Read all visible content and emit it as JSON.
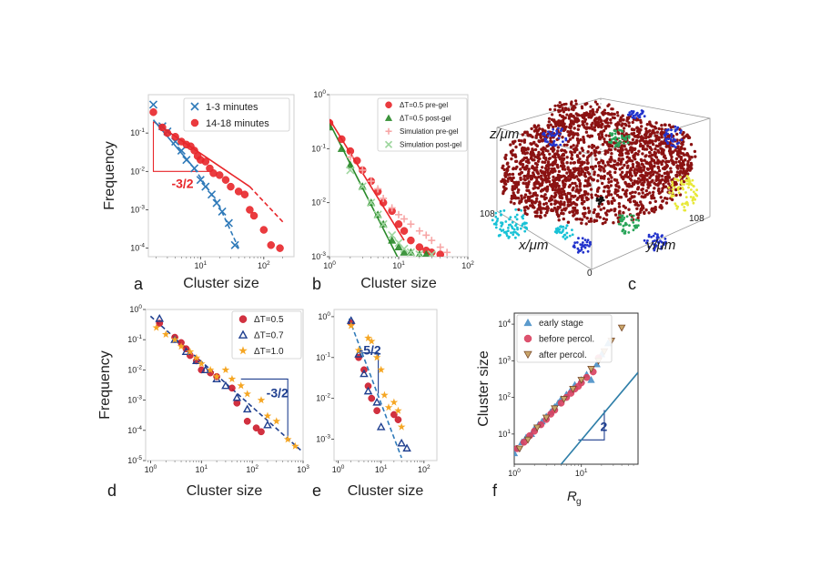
{
  "figure": {
    "panel_labels": [
      "a",
      "b",
      "c",
      "d",
      "e",
      "f"
    ],
    "colors": {
      "red": "#e8262a",
      "blue": "#2f7ab9",
      "green": "#2a8a2a",
      "navy": "#1f3f8f",
      "orange": "#f5a623",
      "maroon": "#8b1212",
      "steel": "#2e7ea8"
    }
  },
  "chart_data": [
    {
      "panel": "a",
      "type": "scatter",
      "xscale": "log",
      "yscale": "log",
      "xlabel": "Cluster size",
      "ylabel": "Frequency",
      "xlim": [
        1.5,
        300
      ],
      "ylim": [
        6e-05,
        1.0
      ],
      "xticks": [
        {
          "v": 10,
          "label": "10^1"
        },
        {
          "v": 100,
          "label": "10^2"
        }
      ],
      "yticks": [
        {
          "v": 0.1,
          "label": "10^-1"
        },
        {
          "v": 0.01,
          "label": "10^-2"
        },
        {
          "v": 0.001,
          "label": "10^-3"
        },
        {
          "v": 0.0001,
          "label": "10^-4"
        }
      ],
      "legend": "top-right",
      "series": [
        {
          "name": "1-3 minutes",
          "marker": "x",
          "color": "#2f7ab9",
          "x": [
            1.8,
            2.5,
            3,
            4,
            5,
            6,
            8,
            10,
            12,
            15,
            18,
            22,
            28,
            35
          ],
          "y": [
            0.55,
            0.15,
            0.11,
            0.06,
            0.035,
            0.02,
            0.012,
            0.006,
            0.004,
            0.0025,
            0.0015,
            0.0009,
            0.00045,
            0.00012
          ]
        },
        {
          "name": "14-18 minutes",
          "marker": "o",
          "color": "#e8262a",
          "x": [
            1.8,
            2.5,
            3,
            4,
            5,
            6,
            7,
            8,
            9,
            10,
            12,
            14,
            16,
            20,
            25,
            30,
            40,
            50,
            60,
            70,
            100,
            130,
            180
          ],
          "y": [
            0.35,
            0.14,
            0.1,
            0.08,
            0.06,
            0.05,
            0.045,
            0.035,
            0.025,
            0.02,
            0.018,
            0.012,
            0.009,
            0.008,
            0.006,
            0.004,
            0.003,
            0.0025,
            0.001,
            0.0007,
            0.0003,
            0.00012,
            0.0001
          ]
        }
      ],
      "fits": [
        {
          "color": "#e8262a",
          "style": "solid",
          "x": [
            1.8,
            60
          ],
          "y": [
            0.2,
            0.004
          ]
        },
        {
          "color": "#e8262a",
          "style": "dashed",
          "x": [
            60,
            200
          ],
          "y": [
            0.004,
            0.00048
          ]
        },
        {
          "color": "#2f7ab9",
          "style": "solid",
          "x": [
            1.8,
            8
          ],
          "y": [
            0.22,
            0.012
          ]
        },
        {
          "color": "#2f7ab9",
          "style": "dashed",
          "x": [
            8,
            20,
            40
          ],
          "y": [
            0.012,
            0.0012,
            0.0001
          ]
        }
      ],
      "slope": {
        "label": "-3/2",
        "color": "#e8262a",
        "x0": 1.8,
        "x1": 13.5,
        "yTop": 0.2,
        "yBottom": 0.01
      }
    },
    {
      "panel": "b",
      "type": "scatter",
      "xscale": "log",
      "yscale": "log",
      "xlabel": "Cluster size",
      "ylabel": "",
      "xlim": [
        1,
        100
      ],
      "ylim": [
        0.001,
        1.0
      ],
      "xticks": [
        {
          "v": 1,
          "label": "10^0"
        },
        {
          "v": 10,
          "label": "10^1"
        },
        {
          "v": 100,
          "label": "10^2"
        }
      ],
      "yticks": [
        {
          "v": 1,
          "label": "10^0"
        },
        {
          "v": 0.1,
          "label": "10^-1"
        },
        {
          "v": 0.01,
          "label": "10^-2"
        },
        {
          "v": 0.001,
          "label": "10^-3"
        }
      ],
      "legend": "top-right",
      "series": [
        {
          "name": "ΔT=0.5 pre-gel",
          "marker": "o",
          "color": "#e8262a",
          "x": [
            1,
            1.5,
            2,
            2.5,
            3,
            4,
            5,
            6,
            8,
            10,
            12,
            15,
            20,
            25,
            30,
            40
          ],
          "y": [
            0.3,
            0.15,
            0.09,
            0.06,
            0.04,
            0.025,
            0.016,
            0.01,
            0.007,
            0.004,
            0.003,
            0.002,
            0.0015,
            0.0013,
            0.0012,
            0.0011
          ]
        },
        {
          "name": "ΔT=0.5 post-gel",
          "marker": "^",
          "color": "#2a8a2a",
          "x": [
            1,
            1.5,
            2,
            3,
            4,
            5,
            6,
            8,
            10,
            12,
            15,
            20,
            25
          ],
          "y": [
            0.25,
            0.1,
            0.05,
            0.02,
            0.01,
            0.006,
            0.004,
            0.002,
            0.0015,
            0.0012,
            0.0012,
            0.0011,
            0.0011
          ]
        },
        {
          "name": "Simulation pre-gel",
          "marker": "+",
          "color": "#f7a6a6",
          "x": [
            2,
            3,
            4,
            5,
            6,
            8,
            10,
            12,
            15,
            20,
            25,
            30,
            40,
            50
          ],
          "y": [
            0.07,
            0.04,
            0.025,
            0.018,
            0.012,
            0.008,
            0.006,
            0.005,
            0.004,
            0.003,
            0.0025,
            0.002,
            0.0015,
            0.0012
          ]
        },
        {
          "name": "Simulation post-gel",
          "marker": "x",
          "color": "#9ed69e",
          "x": [
            2,
            3,
            4,
            5,
            6,
            8,
            10,
            12,
            15,
            20,
            30
          ],
          "y": [
            0.04,
            0.02,
            0.01,
            0.006,
            0.004,
            0.0025,
            0.0018,
            0.0014,
            0.0012,
            0.0011,
            0.0011
          ]
        }
      ],
      "fits": [
        {
          "color": "#e8262a",
          "style": "solid",
          "x": [
            1,
            12
          ],
          "y": [
            0.35,
            0.002
          ]
        },
        {
          "color": "#2a8a2a",
          "style": "solid",
          "x": [
            1,
            10
          ],
          "y": [
            0.3,
            0.0009
          ]
        }
      ]
    },
    {
      "panel": "d",
      "type": "scatter",
      "xscale": "log",
      "yscale": "log",
      "xlabel": "Cluster size",
      "ylabel": "Frequency",
      "xlim": [
        0.8,
        1000
      ],
      "ylim": [
        1e-05,
        1.0
      ],
      "xticks": [
        {
          "v": 1,
          "label": "10^0"
        },
        {
          "v": 10,
          "label": "10^1"
        },
        {
          "v": 100,
          "label": "10^2"
        },
        {
          "v": 1000,
          "label": "10^3"
        }
      ],
      "yticks": [
        {
          "v": 1,
          "label": "10^0"
        },
        {
          "v": 0.1,
          "label": "10^-1"
        },
        {
          "v": 0.01,
          "label": "10^-2"
        },
        {
          "v": 0.001,
          "label": "10^-3"
        },
        {
          "v": 0.0001,
          "label": "10^-4"
        },
        {
          "v": 1e-05,
          "label": "10^-5"
        }
      ],
      "legend": "top-right",
      "series": [
        {
          "name": "ΔT=0.5",
          "marker": "o",
          "color": "#cc1b2b",
          "x": [
            1.5,
            3,
            4,
            5,
            6,
            8,
            10,
            15,
            20,
            40,
            50,
            80,
            120,
            150
          ],
          "y": [
            0.35,
            0.12,
            0.08,
            0.05,
            0.03,
            0.02,
            0.01,
            0.008,
            0.006,
            0.0025,
            0.0008,
            0.0002,
            0.00012,
            9e-05
          ]
        },
        {
          "name": "ΔT=0.7",
          "marker": "^open",
          "color": "#1f3f8f",
          "x": [
            1.5,
            3,
            5,
            8,
            12,
            20,
            30,
            50,
            80,
            200
          ],
          "y": [
            0.5,
            0.1,
            0.04,
            0.02,
            0.01,
            0.005,
            0.003,
            0.0012,
            0.0005,
            0.00015
          ]
        },
        {
          "name": "ΔT=1.0",
          "marker": "*",
          "color": "#f5a623",
          "x": [
            1.3,
            2,
            3,
            4,
            6,
            8,
            10,
            15,
            20,
            30,
            40,
            60,
            80,
            150,
            200,
            300,
            500,
            700
          ],
          "y": [
            0.25,
            0.15,
            0.1,
            0.06,
            0.04,
            0.025,
            0.016,
            0.01,
            0.006,
            0.01,
            0.005,
            0.003,
            0.0016,
            0.001,
            0.0003,
            0.0002,
            5e-05,
            3e-05
          ]
        }
      ],
      "fits": [
        {
          "color": "#1f3f8f",
          "style": "dashed",
          "x": [
            1,
            900
          ],
          "y": [
            0.6,
            2.2e-05
          ]
        }
      ],
      "slope": {
        "label": "-3/2",
        "color": "#1f3f8f",
        "x0": 60,
        "x1": 500,
        "yTop": 0.005,
        "yBottom": 5e-05
      }
    },
    {
      "panel": "e",
      "type": "scatter",
      "xscale": "log",
      "yscale": "log",
      "xlabel": "Cluster size",
      "ylabel": "",
      "xlim": [
        0.8,
        200
      ],
      "ylim": [
        0.0003,
        1.5
      ],
      "xticks": [
        {
          "v": 1,
          "label": "10^0"
        },
        {
          "v": 10,
          "label": "10^1"
        },
        {
          "v": 100,
          "label": "10^2"
        }
      ],
      "yticks": [
        {
          "v": 1,
          "label": "10^0"
        },
        {
          "v": 0.1,
          "label": "10^-1"
        },
        {
          "v": 0.01,
          "label": "10^-2"
        },
        {
          "v": 0.001,
          "label": "10^-3"
        }
      ],
      "series": [
        {
          "name": "ΔT=0.5",
          "marker": "o",
          "color": "#cc1b2b",
          "x": [
            2,
            3,
            4,
            5,
            6,
            8,
            20,
            25
          ],
          "y": [
            0.7,
            0.1,
            0.05,
            0.02,
            0.01,
            0.005,
            0.004,
            0.003
          ]
        },
        {
          "name": "ΔT=0.7",
          "marker": "^open",
          "color": "#1f3f8f",
          "x": [
            2,
            3,
            4,
            5,
            8,
            10,
            30,
            40
          ],
          "y": [
            0.8,
            0.12,
            0.04,
            0.015,
            0.008,
            0.002,
            0.0008,
            0.0006
          ]
        },
        {
          "name": "ΔT=1.0",
          "marker": "*",
          "color": "#f5a623",
          "x": [
            2,
            3,
            5,
            6,
            8,
            10,
            12,
            15,
            20,
            25,
            30
          ],
          "y": [
            0.6,
            0.15,
            0.3,
            0.25,
            0.1,
            0.05,
            0.012,
            0.006,
            0.008,
            0.005,
            0.002
          ]
        }
      ],
      "fits": [
        {
          "color": "#2f7ab9",
          "style": "dashed",
          "x": [
            1.8,
            30
          ],
          "y": [
            0.9,
            0.00035
          ]
        }
      ],
      "slope": {
        "label": "-5/2",
        "color": "#1f3f8f",
        "x0": 3.4,
        "x1": 8.6,
        "yTop": 0.13,
        "yBottom": 0.013
      }
    },
    {
      "panel": "f",
      "type": "scatter",
      "xscale": "log",
      "yscale": "log",
      "xlabel": "R",
      "xlabel_sub": "g",
      "ylabel": "Cluster size",
      "xlim": [
        1,
        70
      ],
      "ylim": [
        1.5,
        20000
      ],
      "xticks": [
        {
          "v": 1,
          "label": "10^0"
        },
        {
          "v": 10,
          "label": "10^1"
        }
      ],
      "yticks": [
        {
          "v": 10000,
          "label": "10^4"
        },
        {
          "v": 1000,
          "label": "10^3"
        },
        {
          "v": 100,
          "label": "10^2"
        },
        {
          "v": 10,
          "label": "10^1"
        }
      ],
      "legend": "top-left",
      "series": [
        {
          "name": "early stage",
          "marker": "^",
          "color": "#4a90c8",
          "x": [
            1.0,
            1.1,
            1.3,
            1.5,
            1.8,
            2.0,
            2.3,
            2.6,
            3.0,
            3.5,
            4.0,
            4.5,
            5.0,
            6.0,
            7.0,
            8.0,
            10.0,
            12.0,
            14.0,
            17.0,
            20.0,
            25.0
          ],
          "y": [
            3,
            4,
            6,
            8,
            10,
            14,
            18,
            22,
            30,
            40,
            55,
            70,
            90,
            120,
            160,
            220,
            300,
            420,
            300,
            800,
            1500,
            3000
          ]
        },
        {
          "name": "before percol.",
          "marker": "o",
          "color": "#d9405f",
          "x": [
            1.1,
            1.4,
            1.7,
            2.0,
            2.5,
            3.0,
            3.5,
            4.0,
            5.0,
            6.0,
            7.0,
            8.0,
            9.0,
            10.0,
            12.0,
            15.0,
            18.0
          ],
          "y": [
            4,
            6,
            9,
            12,
            18,
            25,
            35,
            45,
            70,
            100,
            130,
            170,
            200,
            250,
            350,
            500,
            1200
          ]
        },
        {
          "name": "after percol.",
          "marker": "v",
          "color": "#c9a66b",
          "x": [
            1.2,
            1.6,
            2.2,
            3.0,
            4.0,
            5.5,
            7.5,
            10.0,
            14.0,
            18.0,
            22.0,
            28.0,
            40.0
          ],
          "y": [
            4,
            7,
            15,
            28,
            50,
            90,
            170,
            300,
            600,
            1000,
            1800,
            3500,
            8000
          ]
        }
      ],
      "fits": [
        {
          "color": "#2e7ea8",
          "style": "solid",
          "x": [
            5,
            70
          ],
          "y": [
            1.5,
            480
          ]
        }
      ],
      "slope": {
        "label": "2",
        "color": "#1f3f8f",
        "x0": 9,
        "x1": 22,
        "yTop": 45,
        "yBottom": 6.9
      }
    }
  ],
  "panel_c": {
    "axis_labels": {
      "z": "z/μm",
      "x": "x/μm",
      "y": "y/μm"
    },
    "tick_labels": {
      "left": "108",
      "right": "108",
      "origin": "0"
    },
    "colors": [
      "#8b1212",
      "#2233cc",
      "#19c2d6",
      "#e8e83a",
      "#2aa55a",
      "#111111"
    ]
  }
}
